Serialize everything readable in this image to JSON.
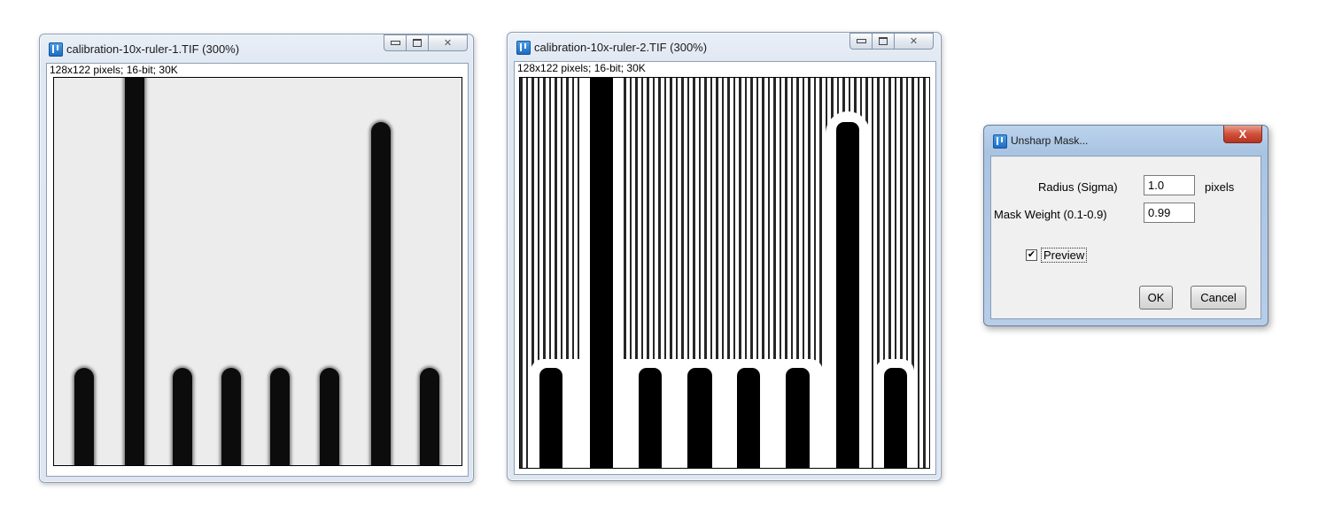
{
  "window1": {
    "title": "calibration-10x-ruler-1.TIF (300%)",
    "info": "128x122 pixels; 16-bit; 30K"
  },
  "window2": {
    "title": "calibration-10x-ruler-2.TIF (300%)",
    "info": "128x122 pixels; 16-bit; 30K"
  },
  "dialog": {
    "title": "Unsharp Mask...",
    "close_label": "X",
    "radius_label": "Radius (Sigma)",
    "radius_value": "1.0",
    "radius_units": "pixels",
    "weight_label": "Mask Weight (0.1-0.9)",
    "weight_value": "0.99",
    "preview_label": "Preview",
    "preview_checked": true,
    "ok_label": "OK",
    "cancel_label": "Cancel"
  },
  "icons": {
    "app": "imagej-icon",
    "minimize": "minimize-icon",
    "maximize": "maximize-icon",
    "close": "close-icon"
  }
}
